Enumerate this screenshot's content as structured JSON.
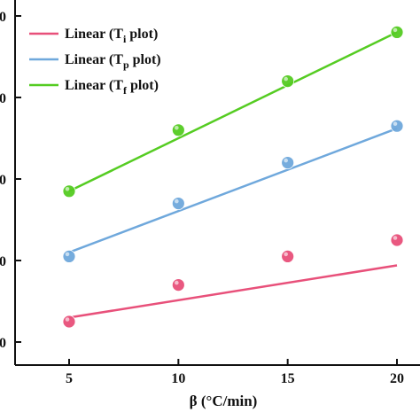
{
  "chart_data": {
    "type": "line",
    "xlabel": "β (°C/min)",
    "x": [
      5,
      10,
      15,
      20
    ],
    "xticks": [
      5,
      10,
      15,
      20
    ],
    "y_tick_fragments": [
      "0",
      "0",
      "0",
      "0",
      "0"
    ],
    "legend_position": "top-left",
    "grid": false,
    "series": [
      {
        "name": "Linear (Ti plot)",
        "legend_prefix": "Linear (T",
        "legend_sub": "i",
        "legend_suffix": " plot)",
        "color": "#e8507a",
        "points": [
          0.25,
          0.7,
          1.05,
          1.25
        ],
        "fit": [
          0.3,
          0.94
        ]
      },
      {
        "name": "Linear (Tp plot)",
        "legend_prefix": "Linear (T",
        "legend_sub": "p",
        "legend_suffix": " plot)",
        "color": "#6fa8dc",
        "points": [
          1.05,
          1.7,
          2.2,
          2.65
        ],
        "fit": [
          1.1,
          2.62
        ]
      },
      {
        "name": "Linear (Tf plot)",
        "legend_prefix": "Linear (T",
        "legend_sub": "f",
        "legend_suffix": " plot)",
        "color": "#55cc22",
        "points": [
          1.85,
          2.6,
          3.2,
          3.8
        ],
        "fit": [
          1.85,
          3.8
        ]
      }
    ]
  }
}
